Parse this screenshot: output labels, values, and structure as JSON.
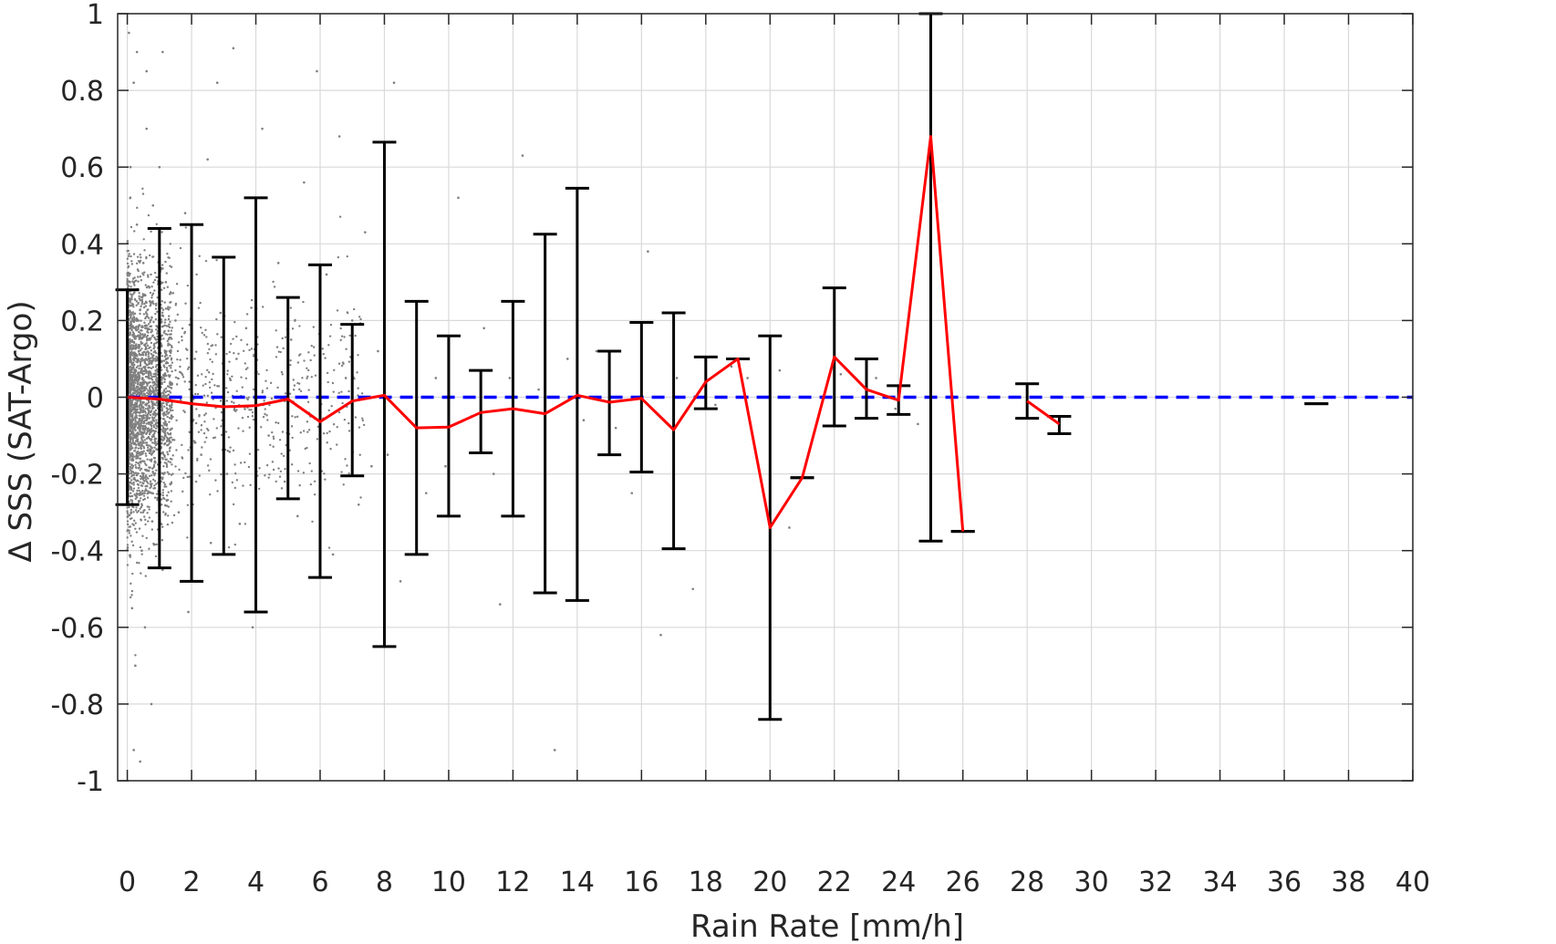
{
  "chart_data": {
    "type": "scatter",
    "xlabel": "Rain Rate [mm/h]",
    "ylabel": "Δ SSS (SAT-Argo)",
    "xlim": [
      -0.3,
      40
    ],
    "ylim": [
      -1,
      1
    ],
    "xticks": [
      0,
      2,
      4,
      6,
      8,
      10,
      12,
      14,
      16,
      18,
      20,
      22,
      24,
      26,
      28,
      30,
      32,
      34,
      36,
      38,
      40
    ],
    "yticks": [
      -1,
      -0.8,
      -0.6,
      -0.4,
      -0.2,
      0,
      0.2,
      0.4,
      0.6,
      0.8,
      1
    ],
    "ytick_labels": [
      "-1",
      "-0.8",
      "-0.6",
      "-0.4",
      "-0.2",
      "0",
      "0.2",
      "0.4",
      "0.6",
      "0.8",
      "1"
    ],
    "grid": true,
    "colors": {
      "scatter": "#808080",
      "mean_line": "#ff0000",
      "error_bars": "#000000",
      "zero_line": "#0000ff",
      "grid": "#d9d9d9",
      "axes": "#262626"
    },
    "scatter_style": "dense grey point cloud concentrated near 0 mm/h",
    "scatter_points": [
      [
        0.05,
        0.95
      ],
      [
        0.1,
        0.6
      ],
      [
        0.15,
        -0.55
      ],
      [
        0.08,
        0.3
      ],
      [
        0.12,
        -0.3
      ],
      [
        0.2,
        0.82
      ],
      [
        0.3,
        0.45
      ],
      [
        0.25,
        -0.7
      ],
      [
        0.35,
        0.2
      ],
      [
        0.4,
        -0.15
      ],
      [
        0.5,
        0.35
      ],
      [
        0.45,
        -0.4
      ],
      [
        0.6,
        0.85
      ],
      [
        0.55,
        -0.6
      ],
      [
        0.7,
        0.25
      ],
      [
        0.65,
        -0.25
      ],
      [
        0.8,
        0.5
      ],
      [
        0.75,
        -0.8
      ],
      [
        0.9,
        0.15
      ],
      [
        0.85,
        -0.12
      ],
      [
        1.0,
        0.6
      ],
      [
        1.1,
        -0.45
      ],
      [
        1.2,
        0.3
      ],
      [
        1.3,
        -0.2
      ],
      [
        0.3,
        0.9
      ],
      [
        0.2,
        -0.92
      ],
      [
        0.6,
        0.7
      ],
      [
        0.4,
        -0.95
      ],
      [
        1.1,
        0.9
      ],
      [
        1.5,
        0.2
      ],
      [
        1.6,
        -0.3
      ],
      [
        1.8,
        0.48
      ],
      [
        1.9,
        -0.56
      ],
      [
        2.1,
        0.1
      ],
      [
        2.3,
        -0.15
      ],
      [
        2.5,
        0.62
      ],
      [
        2.6,
        -0.38
      ],
      [
        2.8,
        0.82
      ],
      [
        2.9,
        0.22
      ],
      [
        3.1,
        -0.2
      ],
      [
        3.3,
        0.91
      ],
      [
        3.4,
        0.1
      ],
      [
        3.5,
        -0.33
      ],
      [
        3.7,
        0.18
      ],
      [
        3.9,
        -0.6
      ],
      [
        4.2,
        0.7
      ],
      [
        4.4,
        -0.1
      ],
      [
        4.7,
        0.35
      ],
      [
        4.9,
        -0.22
      ],
      [
        5.1,
        0.15
      ],
      [
        5.3,
        -0.31
      ],
      [
        5.5,
        0.56
      ],
      [
        5.7,
        -0.05
      ],
      [
        5.9,
        0.85
      ],
      [
        6.2,
        0.32
      ],
      [
        6.4,
        -0.41
      ],
      [
        6.6,
        0.68
      ],
      [
        6.8,
        0.05
      ],
      [
        7.0,
        0.2
      ],
      [
        7.2,
        -0.28
      ],
      [
        7.4,
        0.43
      ],
      [
        7.6,
        -0.18
      ],
      [
        7.8,
        0.12
      ],
      [
        8.1,
        -0.15
      ],
      [
        8.3,
        0.82
      ],
      [
        8.5,
        -0.48
      ],
      [
        8.7,
        0.25
      ],
      [
        9.0,
        0.1
      ],
      [
        9.3,
        -0.25
      ],
      [
        9.6,
        0.05
      ],
      [
        9.9,
        -0.18
      ],
      [
        10.3,
        0.52
      ],
      [
        10.7,
        -0.05
      ],
      [
        11.1,
        0.18
      ],
      [
        11.4,
        -0.2
      ],
      [
        11.6,
        -0.54
      ],
      [
        11.9,
        0.05
      ],
      [
        12.3,
        0.63
      ],
      [
        12.8,
        0.02
      ],
      [
        13.3,
        -0.92
      ],
      [
        13.7,
        0.1
      ],
      [
        14.2,
        -0.06
      ],
      [
        14.6,
        0.12
      ],
      [
        15.2,
        -0.08
      ],
      [
        15.7,
        -0.25
      ],
      [
        16.2,
        0.38
      ],
      [
        16.6,
        -0.62
      ],
      [
        17.1,
        0.05
      ],
      [
        17.6,
        -0.5
      ],
      [
        18.3,
        -0.02
      ],
      [
        18.8,
        0.08
      ],
      [
        19.3,
        0.05
      ],
      [
        20.3,
        0.07
      ],
      [
        20.6,
        -0.34
      ],
      [
        22.2,
        0.06
      ],
      [
        23.3,
        0.05
      ],
      [
        23.9,
        -0.03
      ],
      [
        24.6,
        -0.07
      ]
    ],
    "series": [
      {
        "style": "error-bars",
        "x": [
          0,
          1,
          2,
          3,
          4,
          5,
          6,
          7,
          8,
          9,
          10,
          11,
          12,
          13,
          14,
          15,
          16,
          17,
          18,
          19,
          20,
          21,
          22,
          23,
          24,
          25,
          26,
          28,
          29,
          37
        ],
        "y": [
          0,
          -0.005,
          -0.017,
          -0.025,
          -0.022,
          -0.005,
          -0.064,
          -0.01,
          0.005,
          -0.08,
          -0.078,
          -0.04,
          -0.03,
          -0.043,
          0.005,
          -0.013,
          -0.003,
          -0.085,
          0.04,
          0.1,
          -0.34,
          -0.21,
          0.105,
          0.02,
          -0.008,
          0.68,
          -0.35,
          -0.01,
          -0.07,
          -0.017
        ],
        "upper": [
          0.28,
          0.44,
          0.45,
          0.365,
          0.52,
          0.26,
          0.345,
          0.19,
          0.665,
          0.25,
          0.16,
          0.07,
          0.25,
          0.425,
          0.545,
          0.12,
          0.195,
          0.22,
          0.105,
          0.1,
          0.16,
          -0.21,
          0.285,
          0.1,
          0.03,
          1.0,
          -0.35,
          0.035,
          -0.05,
          -0.017
        ],
        "lower": [
          -0.28,
          -0.445,
          -0.48,
          -0.41,
          -0.56,
          -0.265,
          -0.47,
          -0.205,
          -0.65,
          -0.41,
          -0.31,
          -0.145,
          -0.31,
          -0.51,
          -0.53,
          -0.15,
          -0.195,
          -0.395,
          -0.03,
          0.1,
          -0.84,
          -0.21,
          -0.075,
          -0.055,
          -0.045,
          -0.375,
          -0.35,
          -0.055,
          -0.095,
          -0.017
        ]
      },
      {
        "style": "mean-line",
        "segments": [
          {
            "x": [
              0,
              1,
              2,
              3,
              4,
              5,
              6,
              7,
              8,
              9,
              10,
              11,
              12,
              13,
              14,
              15,
              16,
              17,
              18,
              19,
              20,
              21,
              22,
              23,
              24,
              25,
              26
            ],
            "y": [
              0,
              -0.005,
              -0.017,
              -0.025,
              -0.022,
              -0.005,
              -0.064,
              -0.01,
              0.005,
              -0.08,
              -0.078,
              -0.04,
              -0.03,
              -0.043,
              0.005,
              -0.013,
              -0.003,
              -0.085,
              0.04,
              0.1,
              -0.34,
              -0.21,
              0.105,
              0.02,
              -0.008,
              0.68,
              -0.35
            ]
          },
          {
            "x": [
              28,
              29
            ],
            "y": [
              -0.01,
              -0.07
            ]
          }
        ]
      },
      {
        "style": "zero-reference",
        "x": [
          0,
          40
        ],
        "y": [
          0,
          0
        ]
      }
    ]
  }
}
